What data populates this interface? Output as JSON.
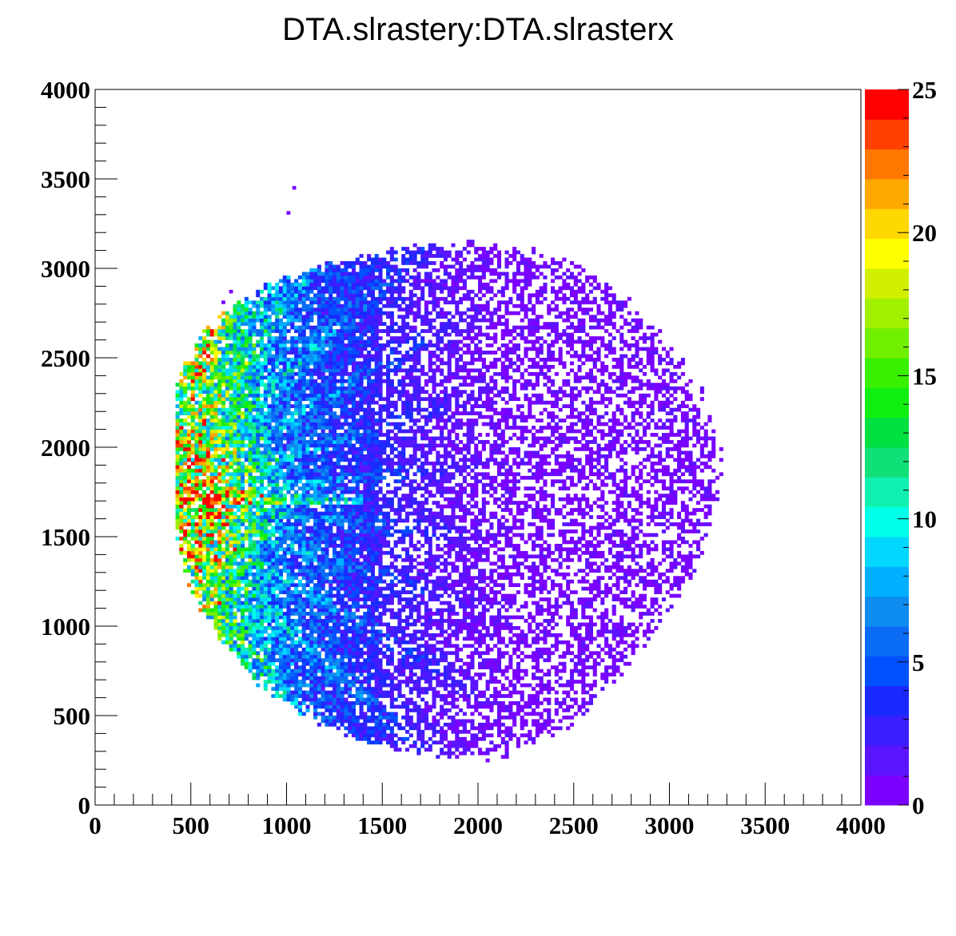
{
  "chart_data": {
    "type": "heatmap",
    "title": "DTA.slrastery:DTA.slrasterx",
    "xlabel": "",
    "ylabel": "",
    "xlim": [
      0,
      4000
    ],
    "ylim": [
      0,
      4000
    ],
    "x_ticks": [
      "0",
      "500",
      "1000",
      "1500",
      "2000",
      "2500",
      "3000",
      "3500",
      "4000"
    ],
    "y_ticks": [
      "0",
      "500",
      "1000",
      "1500",
      "2000",
      "2500",
      "3000",
      "3500",
      "4000"
    ],
    "z_range": [
      0,
      25
    ],
    "colorbar_ticks": [
      "0",
      "5",
      "10",
      "15",
      "20",
      "25"
    ],
    "grid": false,
    "palette": [
      "#7a00ff",
      "#5a14ff",
      "#3a1eff",
      "#1a2aff",
      "#0050ff",
      "#0a6cf4",
      "#0f8cf0",
      "#00b0ff",
      "#00d8ff",
      "#00ffe8",
      "#10f0b0",
      "#10e078",
      "#00e040",
      "#10f010",
      "#38f000",
      "#70f000",
      "#a0f000",
      "#d0f000",
      "#ffff00",
      "#ffd800",
      "#ffa800",
      "#ff7800",
      "#ff4000",
      "#ff0000"
    ],
    "distribution": {
      "description_visible": false,
      "center": [
        1800,
        1750
      ],
      "radius": 1430,
      "left_edge_x": 420,
      "hot_spot": [
        600,
        1700
      ],
      "bin_size": 20
    }
  }
}
